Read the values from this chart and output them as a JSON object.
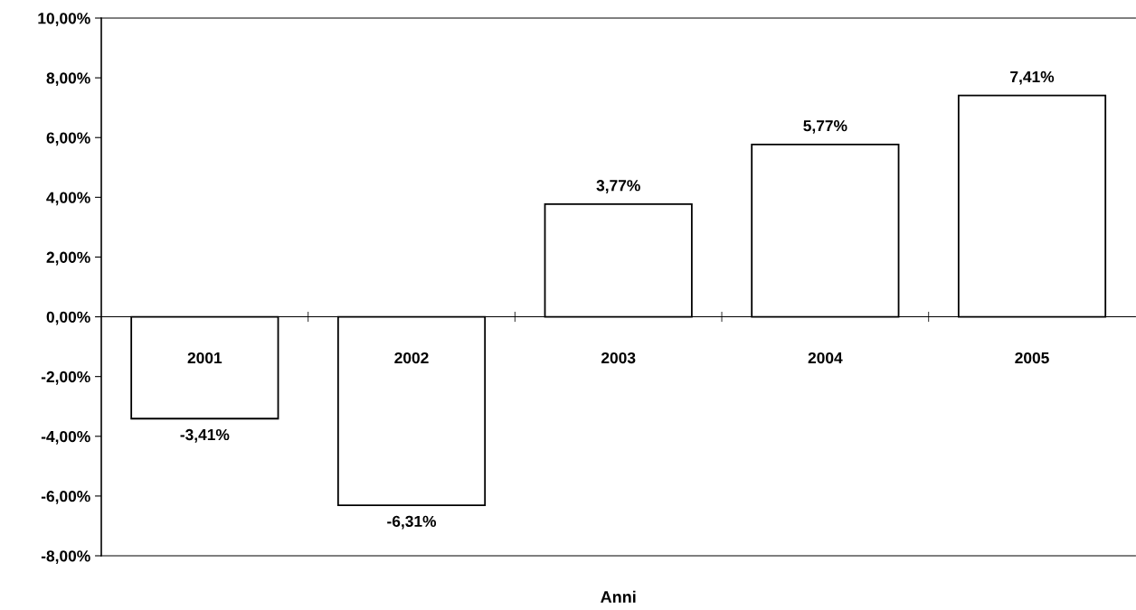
{
  "chart_data": {
    "type": "bar",
    "xlabel": "Anni",
    "categories": [
      "2001",
      "2002",
      "2003",
      "2004",
      "2005"
    ],
    "values": [
      -3.41,
      -6.31,
      3.77,
      5.77,
      7.41
    ],
    "value_labels": [
      "-3,41%",
      "-6,31%",
      "3,77%",
      "5,77%",
      "7,41%"
    ],
    "color": "#ffffff",
    "ylim": [
      -8,
      10
    ],
    "yticks": [
      {
        "value": -8,
        "label": "-8,00%"
      },
      {
        "value": -6,
        "label": "-6,00%"
      },
      {
        "value": -4,
        "label": "-4,00%"
      },
      {
        "value": -2,
        "label": "-2,00%"
      },
      {
        "value": 0,
        "label": "0,00%"
      },
      {
        "value": 2,
        "label": "2,00%"
      },
      {
        "value": 4,
        "label": "4,00%"
      },
      {
        "value": 6,
        "label": "6,00%"
      },
      {
        "value": 8,
        "label": "8,00%"
      },
      {
        "value": 10,
        "label": "10,00%"
      }
    ],
    "grid": false,
    "legend": false
  }
}
